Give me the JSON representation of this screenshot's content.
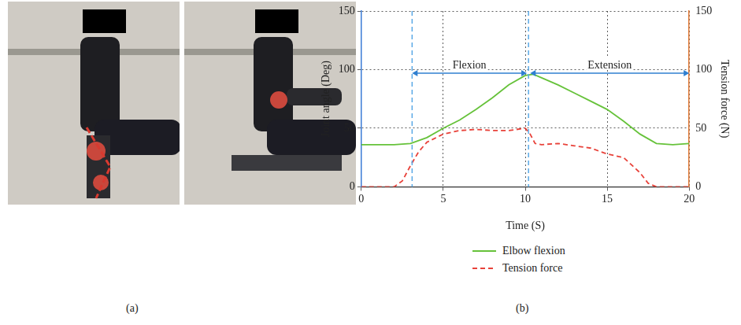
{
  "chart_data": {
    "type": "line",
    "x_label": "Time (S)",
    "y_label": "Joint angle (Deg)",
    "y2_label": "Tension force (N)",
    "xlim": [
      0,
      20
    ],
    "xticks": [
      0,
      5,
      10,
      15,
      20
    ],
    "ylim": [
      0,
      150
    ],
    "yticks": [
      0,
      50,
      100,
      150
    ],
    "y2lim": [
      0,
      150
    ],
    "y2ticks": [
      0,
      50,
      100,
      150
    ],
    "grid": true,
    "legend": "bottom",
    "series": [
      {
        "name": "Elbow flexion",
        "color": "#66c23a",
        "line_style": "solid",
        "axis": "y",
        "x": [
          0,
          1,
          2,
          3,
          4,
          5,
          6,
          7,
          8,
          9,
          10,
          10.5,
          11,
          12,
          13,
          14,
          15,
          16,
          17,
          18,
          19,
          20
        ],
        "values": [
          36,
          36,
          36,
          37,
          42,
          50,
          57,
          66,
          76,
          87,
          95,
          96,
          93,
          87,
          80,
          73,
          66,
          56,
          45,
          37,
          36,
          37
        ]
      },
      {
        "name": "Tension force",
        "color": "#e8423a",
        "line_style": "dashed",
        "axis": "y2",
        "x": [
          0,
          2,
          2.5,
          3,
          3.5,
          4,
          5,
          6,
          7,
          8,
          9,
          10,
          10.3,
          10.6,
          11,
          12,
          13,
          14,
          15,
          16,
          17,
          17.5,
          18,
          20
        ],
        "values": [
          0,
          0,
          5,
          18,
          30,
          38,
          45,
          48,
          49,
          48,
          48,
          50,
          45,
          37,
          36,
          37,
          35,
          33,
          28,
          25,
          12,
          3,
          0,
          0
        ]
      }
    ],
    "vlines": [
      3.1,
      10.2
    ],
    "annotations": [
      {
        "text": "Flexion",
        "x": [
          3.1,
          10.1
        ],
        "y": 97
      },
      {
        "text": "Extension",
        "x": [
          10.3,
          20
        ],
        "y": 97
      }
    ],
    "panel_labels": [
      "(a)",
      "(b)"
    ]
  }
}
